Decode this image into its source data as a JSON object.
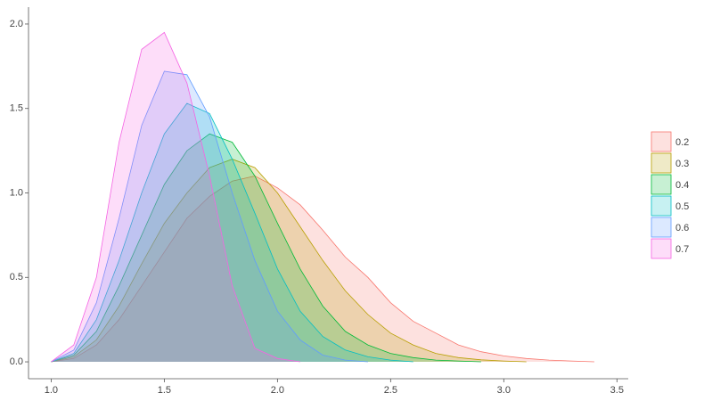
{
  "chart_data": {
    "type": "density",
    "x": [
      1.0,
      1.1,
      1.2,
      1.3,
      1.4,
      1.5,
      1.6,
      1.7,
      1.8,
      1.9,
      2.0,
      2.1,
      2.2,
      2.3,
      2.4,
      2.5,
      2.6,
      2.7,
      2.8,
      2.9,
      3.0,
      3.1,
      3.2,
      3.3,
      3.4
    ],
    "series": [
      {
        "name": "0.2",
        "color": "#F8766D",
        "values": [
          0,
          0.02,
          0.1,
          0.25,
          0.45,
          0.65,
          0.85,
          0.98,
          1.07,
          1.1,
          1.03,
          0.93,
          0.78,
          0.62,
          0.5,
          0.35,
          0.24,
          0.17,
          0.1,
          0.06,
          0.035,
          0.02,
          0.01,
          0.005,
          0
        ]
      },
      {
        "name": "0.3",
        "color": "#B79F00",
        "values": [
          0,
          0.03,
          0.13,
          0.33,
          0.58,
          0.82,
          1.0,
          1.15,
          1.2,
          1.15,
          1.0,
          0.8,
          0.6,
          0.42,
          0.28,
          0.17,
          0.1,
          0.05,
          0.025,
          0.012,
          0.005,
          0,
          null,
          null,
          null
        ]
      },
      {
        "name": "0.4",
        "color": "#00BA38",
        "values": [
          0,
          0.04,
          0.18,
          0.45,
          0.75,
          1.05,
          1.25,
          1.35,
          1.3,
          1.1,
          0.82,
          0.55,
          0.33,
          0.18,
          0.1,
          0.05,
          0.025,
          0.01,
          0.005,
          0,
          null,
          null,
          null,
          null,
          null
        ]
      },
      {
        "name": "0.5",
        "color": "#00BFC4",
        "values": [
          0,
          0.05,
          0.25,
          0.6,
          1.0,
          1.35,
          1.53,
          1.47,
          1.2,
          0.88,
          0.55,
          0.3,
          0.15,
          0.07,
          0.03,
          0.01,
          0,
          null,
          null,
          null,
          null,
          null,
          null,
          null,
          null
        ]
      },
      {
        "name": "0.6",
        "color": "#619CFF",
        "values": [
          0,
          0.07,
          0.35,
          0.85,
          1.4,
          1.72,
          1.7,
          1.45,
          1.0,
          0.6,
          0.3,
          0.13,
          0.04,
          0.01,
          0,
          null,
          null,
          null,
          null,
          null,
          null,
          null,
          null,
          null,
          null
        ]
      },
      {
        "name": "0.7",
        "color": "#F564E3",
        "values": [
          0,
          0.1,
          0.5,
          1.3,
          1.85,
          1.95,
          1.65,
          1.1,
          0.45,
          0.08,
          0.02,
          0,
          null,
          null,
          null,
          null,
          null,
          null,
          null,
          null,
          null,
          null,
          null,
          null,
          null
        ]
      }
    ],
    "xlim": [
      0.9,
      3.55
    ],
    "ylim": [
      -0.1,
      2.1
    ],
    "xticks": [
      {
        "value": 1.0,
        "label": "1.0"
      },
      {
        "value": 1.5,
        "label": "1.5"
      },
      {
        "value": 2.0,
        "label": "2.0"
      },
      {
        "value": 2.5,
        "label": "2.5"
      },
      {
        "value": 3.0,
        "label": "3.0"
      },
      {
        "value": 3.5,
        "label": "3.5"
      }
    ],
    "yticks": [
      {
        "value": 0,
        "label": "0.0"
      },
      {
        "value": 0.5,
        "label": "0.5"
      },
      {
        "value": 1.0,
        "label": "1.0"
      },
      {
        "value": 1.5,
        "label": "1.5"
      },
      {
        "value": 2.0,
        "label": "2.0"
      }
    ],
    "legend": "right",
    "fill_opacity": 0.22
  }
}
